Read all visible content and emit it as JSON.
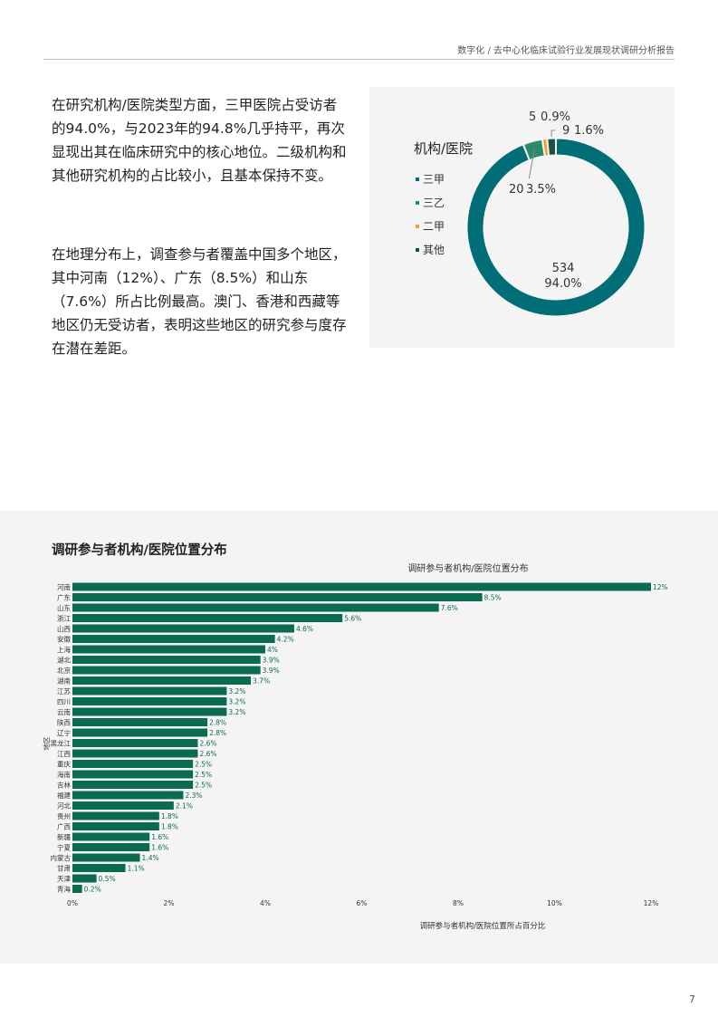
{
  "header": {
    "title": "数字化 / 去中心化临床试验行业发展现状调研分析报告"
  },
  "paragraphs": {
    "p1": "在研究机构/医院类型方面，三甲医院占受访者的94.0%，与2023年的94.8%几乎持平，再次显现出其在临床研究中的核心地位。二级机构和其他研究机构的占比较小，且基本保持不变。",
    "p2": "在地理分布上，调查参与者覆盖中国多个地区，其中河南（12%）、广东（8.5%）和山东（7.6%）所占比例最高。澳门、香港和西藏等地区仍无受访者，表明这些地区的研究参与度存在潜在差距。"
  },
  "section": {
    "title": "调研参与者机构/医院位置分布"
  },
  "page_number": "7",
  "colors": {
    "dark_teal": "#006d77",
    "dark_green": "#0b6b50",
    "teal_green": "#2a8a6a",
    "orange": "#e8a33d",
    "panel": "#f4f4f4"
  },
  "chart_data": [
    {
      "type": "pie",
      "title": "机构/医院",
      "labels": [
        "三甲",
        "三乙",
        "二甲",
        "其他"
      ],
      "values": [
        534,
        20,
        5,
        9
      ],
      "percent_labels": [
        "94.0%",
        "3.5%",
        "0.9%",
        "1.6%"
      ],
      "colors": [
        "#006d77",
        "#2a8a6a",
        "#e8a33d",
        "#1f4f3e"
      ],
      "legend": "left"
    },
    {
      "type": "bar",
      "orientation": "horizontal",
      "title": "调研参与者机构/医院位置分布",
      "xlabel": "调研参与者机构/医院位置所占百分比",
      "ylabel": "地区",
      "xlim": [
        0,
        12.5
      ],
      "xticks": [
        "0%",
        "2%",
        "4%",
        "6%",
        "8%",
        "10%",
        "12%"
      ],
      "xtick_values": [
        0,
        2,
        4,
        6,
        8,
        10,
        12
      ],
      "categories": [
        "河南",
        "广东",
        "山东",
        "浙江",
        "山西",
        "安徽",
        "上海",
        "湖北",
        "北京",
        "湖南",
        "江苏",
        "四川",
        "云南",
        "陕西",
        "辽宁",
        "黑龙江",
        "江西",
        "重庆",
        "海南",
        "吉林",
        "福建",
        "河北",
        "贵州",
        "广西",
        "新疆",
        "宁夏",
        "内蒙古",
        "甘肃",
        "天津",
        "青海"
      ],
      "values": [
        12,
        8.5,
        7.6,
        5.6,
        4.6,
        4.2,
        4,
        3.9,
        3.9,
        3.7,
        3.2,
        3.2,
        3.2,
        2.8,
        2.8,
        2.6,
        2.6,
        2.5,
        2.5,
        2.5,
        2.3,
        2.1,
        1.8,
        1.8,
        1.6,
        1.6,
        1.4,
        1.1,
        0.5,
        0.2
      ],
      "value_labels": [
        "12%",
        "8.5%",
        "7.6%",
        "5.6%",
        "4.6%",
        "4.2%",
        "4%",
        "3.9%",
        "3.9%",
        "3.7%",
        "3.2%",
        "3.2%",
        "3.2%",
        "2.8%",
        "2.8%",
        "2.6%",
        "2.6%",
        "2.5%",
        "2.5%",
        "2.5%",
        "2.3%",
        "2.1%",
        "1.8%",
        "1.8%",
        "1.6%",
        "1.6%",
        "1.4%",
        "1.1%",
        "0.5%",
        "0.2%"
      ],
      "color": "#0b6b50",
      "grid": false
    }
  ]
}
